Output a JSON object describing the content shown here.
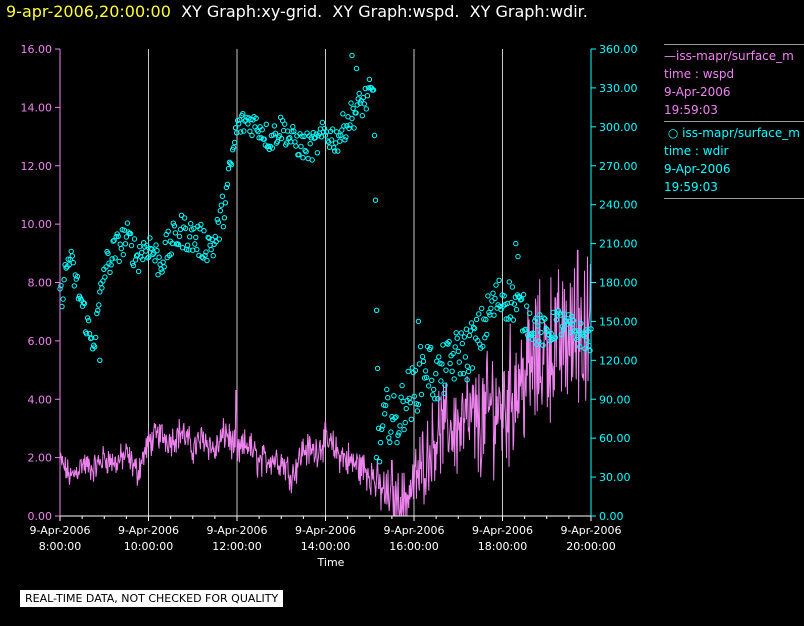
{
  "header": {
    "timestamp": "9-apr-2006,20:00:00",
    "titles": [
      "XY Graph:xy-grid.",
      "XY Graph:wspd.",
      "XY Graph:wdir."
    ]
  },
  "legend": {
    "wspd": {
      "label": "iss-mapr/surface_m",
      "sub": "time : wspd",
      "date": "9-Apr-2006",
      "time": "19:59:03"
    },
    "wdir": {
      "label": "iss-mapr/surface_m",
      "sub": "time : wdir",
      "date": "9-Apr-2006",
      "time": "19:59:03"
    }
  },
  "footer": {
    "quality_note": "REAL-TIME DATA, NOT CHECKED FOR QUALITY"
  },
  "colors": {
    "wspd": "#ee82ee",
    "wdir": "#00ffff",
    "grid": "#c8c8c8",
    "background": "#000000"
  },
  "chart_data": {
    "type": "line",
    "xlabel": "Time",
    "x_ticks": [
      {
        "hour": 8,
        "date": "9-Apr-2006",
        "time": "8:00:00"
      },
      {
        "hour": 10,
        "date": "9-Apr-2006",
        "time": "10:00:00"
      },
      {
        "hour": 12,
        "date": "9-Apr-2006",
        "time": "12:00:00"
      },
      {
        "hour": 14,
        "date": "9-Apr-2006",
        "time": "14:00:00"
      },
      {
        "hour": 16,
        "date": "9-Apr-2006",
        "time": "16:00:00"
      },
      {
        "hour": 18,
        "date": "9-Apr-2006",
        "time": "18:00:00"
      },
      {
        "hour": 20,
        "date": "9-Apr-2006",
        "time": "20:00:00"
      }
    ],
    "xlim": [
      8.0,
      20.0
    ],
    "grid": "vertical lines at each x tick",
    "y_left": {
      "series": "wspd",
      "lim": [
        0,
        16
      ],
      "ticks": [
        "0.00",
        "2.00",
        "4.00",
        "6.00",
        "8.00",
        "10.00",
        "12.00",
        "14.00",
        "16.00"
      ]
    },
    "y_right": {
      "series": "wdir",
      "lim": [
        0,
        360
      ],
      "ticks": [
        "0.00",
        "30.00",
        "60.00",
        "90.00",
        "120.00",
        "150.00",
        "180.00",
        "210.00",
        "240.00",
        "270.00",
        "300.00",
        "330.00",
        "360.00"
      ]
    },
    "series": [
      {
        "name": "wspd",
        "style": "line",
        "axis": "left",
        "anchors": [
          [
            8.0,
            1.9
          ],
          [
            8.25,
            1.3
          ],
          [
            8.5,
            1.8
          ],
          [
            8.75,
            1.6
          ],
          [
            9.0,
            2.0
          ],
          [
            9.25,
            1.8
          ],
          [
            9.5,
            2.1
          ],
          [
            9.75,
            1.5
          ],
          [
            10.0,
            2.5
          ],
          [
            10.25,
            2.8
          ],
          [
            10.5,
            2.6
          ],
          [
            10.75,
            2.9
          ],
          [
            11.0,
            2.3
          ],
          [
            11.25,
            2.7
          ],
          [
            11.5,
            2.2
          ],
          [
            11.75,
            2.9
          ],
          [
            12.0,
            2.1
          ],
          [
            12.25,
            2.5
          ],
          [
            12.5,
            1.8
          ],
          [
            12.75,
            2.0
          ],
          [
            13.0,
            1.9
          ],
          [
            13.25,
            1.4
          ],
          [
            13.5,
            2.3
          ],
          [
            13.75,
            2.2
          ],
          [
            14.0,
            2.6
          ],
          [
            14.25,
            2.2
          ],
          [
            14.5,
            1.9
          ],
          [
            14.75,
            1.7
          ],
          [
            15.0,
            1.5
          ],
          [
            15.25,
            0.9
          ],
          [
            15.5,
            0.6
          ],
          [
            15.75,
            0.5
          ],
          [
            16.0,
            1.1
          ],
          [
            16.25,
            1.9
          ],
          [
            16.5,
            2.8
          ],
          [
            16.75,
            3.1
          ],
          [
            17.0,
            3.0
          ],
          [
            17.25,
            3.3
          ],
          [
            17.5,
            3.1
          ],
          [
            17.75,
            3.8
          ],
          [
            18.0,
            3.6
          ],
          [
            18.25,
            4.4
          ],
          [
            18.5,
            4.8
          ],
          [
            18.75,
            5.2
          ],
          [
            19.0,
            5.8
          ],
          [
            19.25,
            5.9
          ],
          [
            19.5,
            6.1
          ],
          [
            19.75,
            6.3
          ],
          [
            20.0,
            6.2
          ]
        ],
        "amplitude": [
          [
            8.0,
            0.35
          ],
          [
            10.0,
            0.4
          ],
          [
            12.0,
            0.45
          ],
          [
            14.0,
            0.45
          ],
          [
            15.0,
            0.55
          ],
          [
            16.0,
            0.9
          ],
          [
            17.0,
            1.3
          ],
          [
            18.0,
            1.7
          ],
          [
            19.0,
            1.9
          ],
          [
            20.0,
            1.9
          ]
        ],
        "spikes": [
          [
            11.98,
            4.3
          ],
          [
            15.5,
            1.9
          ],
          [
            16.2,
            2.9
          ],
          [
            19.7,
            9.1
          ],
          [
            19.85,
            8.4
          ]
        ]
      },
      {
        "name": "wdir",
        "style": "scatter",
        "axis": "right",
        "anchors": [
          [
            8.0,
            165
          ],
          [
            8.2,
            200
          ],
          [
            8.4,
            175
          ],
          [
            8.6,
            150
          ],
          [
            8.7,
            135
          ],
          [
            8.8,
            140
          ],
          [
            9.0,
            190
          ],
          [
            9.25,
            205
          ],
          [
            9.5,
            215
          ],
          [
            9.75,
            200
          ],
          [
            10.0,
            210
          ],
          [
            10.25,
            195
          ],
          [
            10.5,
            210
          ],
          [
            10.75,
            220
          ],
          [
            11.0,
            215
          ],
          [
            11.25,
            210
          ],
          [
            11.5,
            210
          ],
          [
            11.75,
            245
          ],
          [
            12.0,
            300
          ],
          [
            12.25,
            305
          ],
          [
            12.5,
            300
          ],
          [
            12.75,
            290
          ],
          [
            13.0,
            300
          ],
          [
            13.25,
            290
          ],
          [
            13.5,
            285
          ],
          [
            13.75,
            285
          ],
          [
            14.0,
            295
          ],
          [
            14.25,
            290
          ],
          [
            14.5,
            305
          ],
          [
            14.75,
            315
          ],
          [
            15.0,
            325
          ],
          [
            15.1,
            320
          ],
          [
            15.2,
            50
          ],
          [
            15.4,
            80
          ],
          [
            15.6,
            70
          ],
          [
            15.8,
            90
          ],
          [
            16.0,
            95
          ],
          [
            16.25,
            120
          ],
          [
            16.5,
            105
          ],
          [
            16.75,
            115
          ],
          [
            17.0,
            125
          ],
          [
            17.25,
            130
          ],
          [
            17.5,
            140
          ],
          [
            17.75,
            160
          ],
          [
            18.0,
            170
          ],
          [
            18.25,
            165
          ],
          [
            18.5,
            155
          ],
          [
            18.75,
            145
          ],
          [
            19.0,
            140
          ],
          [
            19.25,
            150
          ],
          [
            19.5,
            145
          ],
          [
            19.75,
            140
          ],
          [
            20.0,
            135
          ]
        ],
        "scatter_spread": [
          [
            8.0,
            12
          ],
          [
            11.75,
            14
          ],
          [
            12.0,
            10
          ],
          [
            15.0,
            12
          ],
          [
            15.2,
            20
          ],
          [
            16.0,
            22
          ],
          [
            17.0,
            20
          ],
          [
            18.0,
            18
          ],
          [
            19.0,
            12
          ],
          [
            20.0,
            10
          ]
        ],
        "extras": [
          [
            8.9,
            120
          ],
          [
            14.6,
            355
          ],
          [
            14.7,
            345
          ],
          [
            15.15,
            45
          ],
          [
            16.1,
            150
          ],
          [
            17.2,
            105
          ],
          [
            18.3,
            210
          ],
          [
            18.35,
            200
          ]
        ]
      }
    ]
  }
}
